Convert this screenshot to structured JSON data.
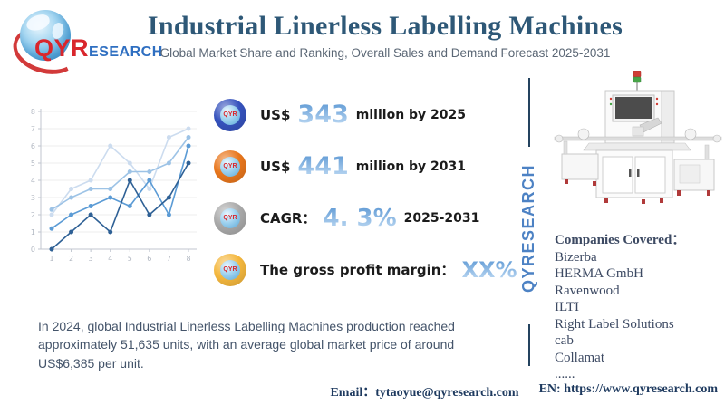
{
  "logo": {
    "prefix": "QYR",
    "suffix": "ESEARCH"
  },
  "header": {
    "title": "Industrial Linerless Labelling Machines",
    "subtitle": "Global Market Share and Ranking, Overall Sales and Demand Forecast 2025-2031"
  },
  "chart_data": {
    "type": "line",
    "x": [
      1,
      2,
      3,
      4,
      5,
      6,
      7,
      8
    ],
    "series": [
      {
        "name": "series-lightest",
        "color": "#ccdcef",
        "values": [
          2,
          3.5,
          4,
          6,
          5,
          3.5,
          6.5,
          7
        ]
      },
      {
        "name": "series-light",
        "color": "#9dc3e6",
        "values": [
          2.3,
          3,
          3.5,
          3.5,
          4.5,
          4.5,
          5,
          6.5
        ]
      },
      {
        "name": "series-medium",
        "color": "#5b9bd5",
        "values": [
          1.2,
          2,
          2.5,
          3,
          2.5,
          4,
          2,
          6
        ]
      },
      {
        "name": "series-dark",
        "color": "#2e6095",
        "values": [
          0,
          1,
          2,
          1,
          4,
          2,
          3,
          5
        ]
      }
    ],
    "title": "",
    "xlabel": "",
    "ylabel": "",
    "xlim": [
      1,
      8
    ],
    "ylim": [
      0,
      8
    ],
    "yticks": [
      0,
      1,
      2,
      3,
      4,
      5,
      6,
      7,
      8
    ],
    "grid": true,
    "legend": false,
    "axis_color": "#c0c6cf",
    "tick_label_color": "#b2b8c2"
  },
  "bullets": {
    "icon_text": "QYR",
    "items": [
      {
        "prefix": "US$",
        "value": "343",
        "suffix": "million by 2025",
        "icon_color": "#3552bd",
        "icon_name": "globe-badge-blue"
      },
      {
        "prefix": "US$",
        "value": "441",
        "suffix": "million by 2031",
        "icon_color": "#e8761c",
        "icon_name": "globe-badge-orange"
      },
      {
        "prefix": "CAGR：",
        "value": "4. 3%",
        "suffix": "2025-2031",
        "icon_color": "#a9a9a9",
        "icon_name": "globe-badge-gray"
      },
      {
        "prefix": "The gross profit margin：",
        "value": "XX%",
        "suffix": "",
        "icon_color": "#f4b73d",
        "icon_name": "globe-badge-yellow"
      }
    ]
  },
  "right_panel": {
    "watermark": "QYRESEARCH",
    "companies_title": "Companies Covered：",
    "companies": [
      "Bizerba",
      "HERMA GmbH",
      "Ravenwood",
      "ILTI",
      "Right Label Solutions",
      "cab",
      "Collamat",
      "......"
    ]
  },
  "summary": {
    "text": "In 2024, global Industrial Linerless Labelling Machines production reached approximately 51,635 units, with an average global market price of around US$6,385 per unit."
  },
  "footer": {
    "email_label": "Email：",
    "email": "tytaoyue@qyresearch.com",
    "en_label": "EN:",
    "url": "https://www.qyresearch.com"
  },
  "colors": {
    "title": "#2e5877",
    "body_text": "#44546a",
    "divider": "#24435f",
    "watermark": "#4d82c4",
    "logo_red": "#d9262c",
    "logo_blue": "#2f6fc1"
  }
}
